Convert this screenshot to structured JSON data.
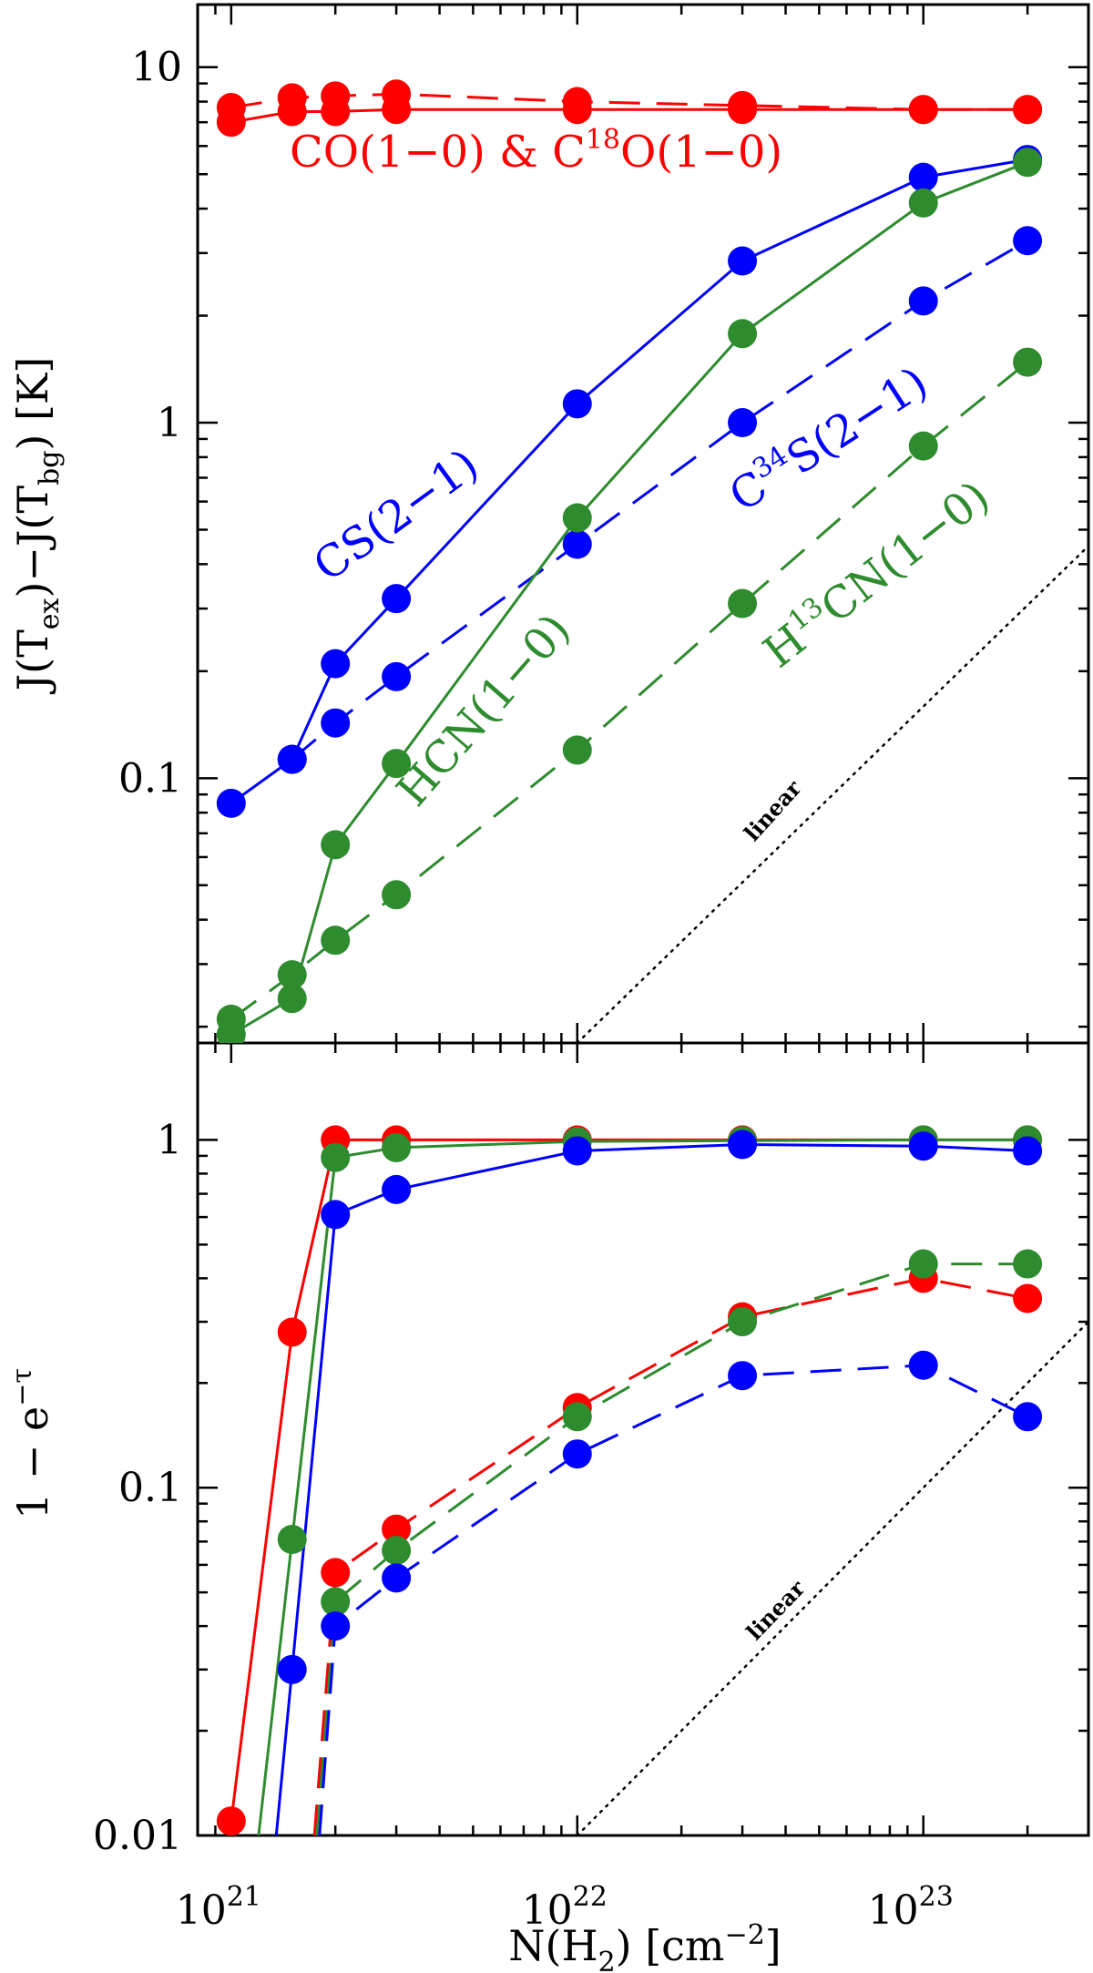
{
  "chart_data": {
    "type": "line",
    "shared_x": {
      "label": "N(H2) [cm^-2]",
      "scale": "log",
      "xlim": [
        8e+20,
        3e+23
      ],
      "ticks": [
        {
          "value": 1e+21,
          "base": "10",
          "exp": "21"
        },
        {
          "value": 1e+22,
          "base": "10",
          "exp": "22"
        },
        {
          "value": 1e+23,
          "base": "10",
          "exp": "23"
        }
      ]
    },
    "panels": [
      {
        "id": "top",
        "ylabel": "J(Tex)-J(Tbg) [K]",
        "scale": "log",
        "ylim": [
          0.018,
          15
        ],
        "ytick_labels": [
          {
            "value": 0.1,
            "text": "0.1"
          },
          {
            "value": 1,
            "text": "1"
          },
          {
            "value": 10,
            "text": "10"
          }
        ],
        "x": [
          1e+21,
          1.5e+21,
          2e+21,
          3e+21,
          1e+22,
          3e+22,
          1e+23,
          2e+23
        ],
        "series": [
          {
            "name": "CO(1-0)",
            "color": "#ff0000",
            "dash": "solid",
            "values": [
              7.0,
              7.5,
              7.5,
              7.6,
              7.6,
              7.6,
              7.6,
              7.6
            ]
          },
          {
            "name": "C18O(1-0)",
            "color": "#ff0000",
            "dash": "dashed",
            "values": [
              7.7,
              8.2,
              8.3,
              8.4,
              8.0,
              7.8,
              7.6,
              7.6
            ]
          },
          {
            "name": "CS(2-1)",
            "color": "#0000ff",
            "dash": "solid",
            "values": [
              0.085,
              0.113,
              0.21,
              0.32,
              1.13,
              2.85,
              4.9,
              5.5
            ]
          },
          {
            "name": "C34S(2-1)",
            "color": "#0000ff",
            "dash": "dashed",
            "values": [
              null,
              0.113,
              0.143,
              0.193,
              0.455,
              1.0,
              2.2,
              3.25
            ]
          },
          {
            "name": "HCN(1-0)",
            "color": "#2e8b2e",
            "dash": "solid",
            "values": [
              0.019,
              0.024,
              0.065,
              0.11,
              0.54,
              1.78,
              4.15,
              5.4
            ]
          },
          {
            "name": "H13CN(1-0)",
            "color": "#2e8b2e",
            "dash": "dashed",
            "values": [
              0.021,
              0.028,
              0.035,
              0.047,
              0.12,
              0.31,
              0.86,
              1.48
            ]
          }
        ],
        "reference_line": {
          "label": "linear",
          "x": [
            1e+22,
            3e+23
          ],
          "y": [
            0.018,
            0.45
          ]
        },
        "annotations": [
          {
            "id": "co",
            "color": "#ff0000",
            "base": "CO(1−0) & C",
            "sup": "18",
            "rest": "O(1−0)",
            "angle": 0
          },
          {
            "id": "cs",
            "color": "#0000ff",
            "base": "CS(2−1)",
            "angle": -36
          },
          {
            "id": "c34s",
            "color": "#0000ff",
            "base": "C",
            "sup": "34",
            "rest": "S(2−1)",
            "angle": -33
          },
          {
            "id": "hcn",
            "color": "#2e8b2e",
            "base": "HCN(1−0)",
            "angle": -49
          },
          {
            "id": "h13cn",
            "color": "#2e8b2e",
            "base": "H",
            "sup": "13",
            "rest": "CN(1−0)",
            "angle": -38
          }
        ]
      },
      {
        "id": "bottom",
        "ylabel": "1 - e^-tau",
        "scale": "log",
        "ylim": [
          0.01,
          1.9
        ],
        "ytick_labels": [
          {
            "value": 0.01,
            "text": "0.01"
          },
          {
            "value": 0.1,
            "text": "0.1"
          },
          {
            "value": 1,
            "text": "1"
          }
        ],
        "x": [
          1e+21,
          1.5e+21,
          2e+21,
          3e+21,
          1e+22,
          3e+22,
          1e+23,
          2e+23
        ],
        "series": [
          {
            "name": "CO(1-0)",
            "color": "#ff0000",
            "dash": "solid",
            "values": [
              0.011,
              0.28,
              1.0,
              1.0,
              1.0,
              1.0,
              1.0,
              1.0
            ],
            "lead_in": {
              "x": 1e+21,
              "y": 0.011
            }
          },
          {
            "name": "HCN(1-0)",
            "color": "#2e8b2e",
            "dash": "solid",
            "values": [
              null,
              0.071,
              0.89,
              0.95,
              0.99,
              0.995,
              1.0,
              1.0
            ],
            "lead_in": {
              "x": 1.2e+21,
              "y": 0.01
            }
          },
          {
            "name": "CS(2-1)",
            "color": "#0000ff",
            "dash": "solid",
            "values": [
              null,
              0.03,
              0.61,
              0.72,
              0.93,
              0.97,
              0.96,
              0.93
            ],
            "lead_in": {
              "x": 1.35e+21,
              "y": 0.01
            }
          },
          {
            "name": "C18O(1-0)",
            "color": "#ff0000",
            "dash": "dashed",
            "values": [
              null,
              null,
              0.057,
              0.076,
              0.17,
              0.31,
              0.4,
              0.35
            ],
            "lead_in": {
              "x": 1.74e+21,
              "y": 0.01
            }
          },
          {
            "name": "H13CN(1-0)",
            "color": "#2e8b2e",
            "dash": "dashed",
            "values": [
              null,
              null,
              0.047,
              0.066,
              0.16,
              0.3,
              0.44,
              0.44
            ],
            "lead_in": {
              "x": 1.77e+21,
              "y": 0.01
            }
          },
          {
            "name": "C34S(2-1)",
            "color": "#0000ff",
            "dash": "dashed",
            "values": [
              null,
              null,
              0.04,
              0.055,
              0.125,
              0.21,
              0.225,
              0.16
            ],
            "lead_in": {
              "x": 1.8e+21,
              "y": 0.01
            }
          }
        ],
        "reference_line": {
          "label": "linear",
          "x": [
            1e+22,
            3e+23
          ],
          "y": [
            0.01,
            0.3
          ]
        },
        "annotations": []
      }
    ]
  }
}
